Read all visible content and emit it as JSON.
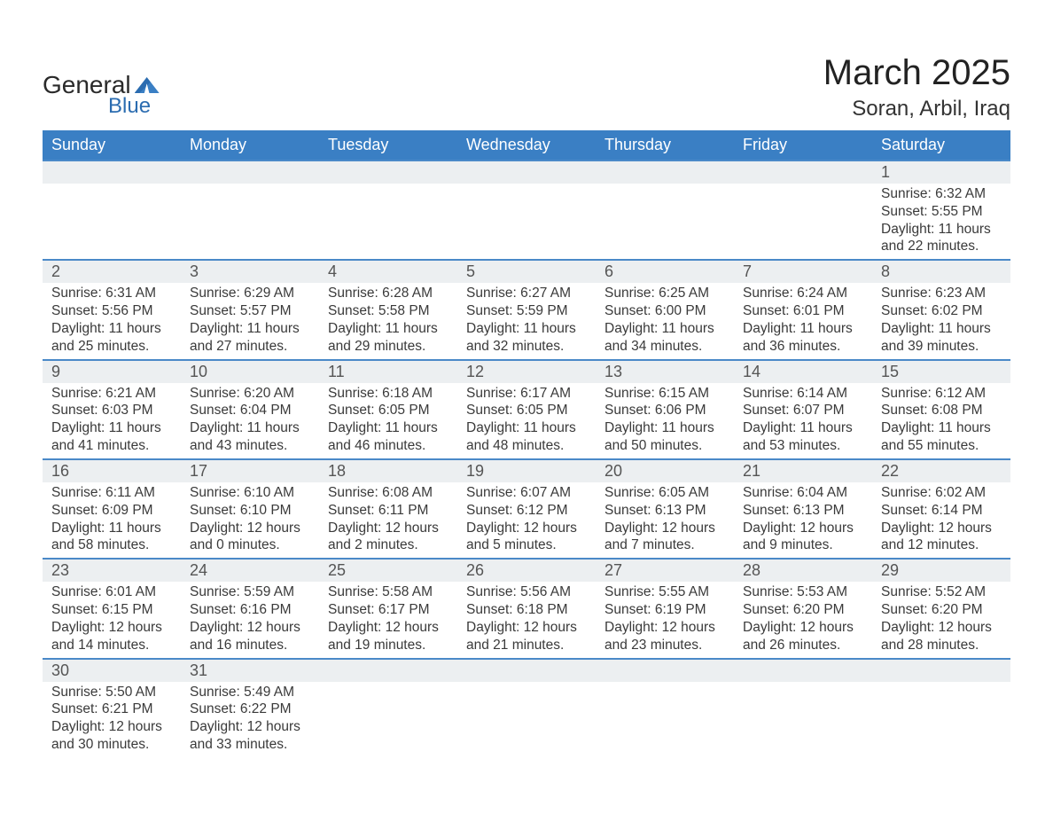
{
  "brand": {
    "name1": "General",
    "name2": "Blue",
    "accent": "#2b6cb0"
  },
  "title": "March 2025",
  "location": "Soran, Arbil, Iraq",
  "weekdays": [
    "Sunday",
    "Monday",
    "Tuesday",
    "Wednesday",
    "Thursday",
    "Friday",
    "Saturday"
  ],
  "colors": {
    "header_bg": "#3a7fc4",
    "header_fg": "#ffffff",
    "daynum_bg": "#eceff1",
    "row_border": "#4a89c8",
    "text": "#3a3a3a"
  },
  "weeks": [
    [
      null,
      null,
      null,
      null,
      null,
      null,
      {
        "d": "1",
        "sr": "6:32 AM",
        "ss": "5:55 PM",
        "dl": "11 hours and 22 minutes."
      }
    ],
    [
      {
        "d": "2",
        "sr": "6:31 AM",
        "ss": "5:56 PM",
        "dl": "11 hours and 25 minutes."
      },
      {
        "d": "3",
        "sr": "6:29 AM",
        "ss": "5:57 PM",
        "dl": "11 hours and 27 minutes."
      },
      {
        "d": "4",
        "sr": "6:28 AM",
        "ss": "5:58 PM",
        "dl": "11 hours and 29 minutes."
      },
      {
        "d": "5",
        "sr": "6:27 AM",
        "ss": "5:59 PM",
        "dl": "11 hours and 32 minutes."
      },
      {
        "d": "6",
        "sr": "6:25 AM",
        "ss": "6:00 PM",
        "dl": "11 hours and 34 minutes."
      },
      {
        "d": "7",
        "sr": "6:24 AM",
        "ss": "6:01 PM",
        "dl": "11 hours and 36 minutes."
      },
      {
        "d": "8",
        "sr": "6:23 AM",
        "ss": "6:02 PM",
        "dl": "11 hours and 39 minutes."
      }
    ],
    [
      {
        "d": "9",
        "sr": "6:21 AM",
        "ss": "6:03 PM",
        "dl": "11 hours and 41 minutes."
      },
      {
        "d": "10",
        "sr": "6:20 AM",
        "ss": "6:04 PM",
        "dl": "11 hours and 43 minutes."
      },
      {
        "d": "11",
        "sr": "6:18 AM",
        "ss": "6:05 PM",
        "dl": "11 hours and 46 minutes."
      },
      {
        "d": "12",
        "sr": "6:17 AM",
        "ss": "6:05 PM",
        "dl": "11 hours and 48 minutes."
      },
      {
        "d": "13",
        "sr": "6:15 AM",
        "ss": "6:06 PM",
        "dl": "11 hours and 50 minutes."
      },
      {
        "d": "14",
        "sr": "6:14 AM",
        "ss": "6:07 PM",
        "dl": "11 hours and 53 minutes."
      },
      {
        "d": "15",
        "sr": "6:12 AM",
        "ss": "6:08 PM",
        "dl": "11 hours and 55 minutes."
      }
    ],
    [
      {
        "d": "16",
        "sr": "6:11 AM",
        "ss": "6:09 PM",
        "dl": "11 hours and 58 minutes."
      },
      {
        "d": "17",
        "sr": "6:10 AM",
        "ss": "6:10 PM",
        "dl": "12 hours and 0 minutes."
      },
      {
        "d": "18",
        "sr": "6:08 AM",
        "ss": "6:11 PM",
        "dl": "12 hours and 2 minutes."
      },
      {
        "d": "19",
        "sr": "6:07 AM",
        "ss": "6:12 PM",
        "dl": "12 hours and 5 minutes."
      },
      {
        "d": "20",
        "sr": "6:05 AM",
        "ss": "6:13 PM",
        "dl": "12 hours and 7 minutes."
      },
      {
        "d": "21",
        "sr": "6:04 AM",
        "ss": "6:13 PM",
        "dl": "12 hours and 9 minutes."
      },
      {
        "d": "22",
        "sr": "6:02 AM",
        "ss": "6:14 PM",
        "dl": "12 hours and 12 minutes."
      }
    ],
    [
      {
        "d": "23",
        "sr": "6:01 AM",
        "ss": "6:15 PM",
        "dl": "12 hours and 14 minutes."
      },
      {
        "d": "24",
        "sr": "5:59 AM",
        "ss": "6:16 PM",
        "dl": "12 hours and 16 minutes."
      },
      {
        "d": "25",
        "sr": "5:58 AM",
        "ss": "6:17 PM",
        "dl": "12 hours and 19 minutes."
      },
      {
        "d": "26",
        "sr": "5:56 AM",
        "ss": "6:18 PM",
        "dl": "12 hours and 21 minutes."
      },
      {
        "d": "27",
        "sr": "5:55 AM",
        "ss": "6:19 PM",
        "dl": "12 hours and 23 minutes."
      },
      {
        "d": "28",
        "sr": "5:53 AM",
        "ss": "6:20 PM",
        "dl": "12 hours and 26 minutes."
      },
      {
        "d": "29",
        "sr": "5:52 AM",
        "ss": "6:20 PM",
        "dl": "12 hours and 28 minutes."
      }
    ],
    [
      {
        "d": "30",
        "sr": "5:50 AM",
        "ss": "6:21 PM",
        "dl": "12 hours and 30 minutes."
      },
      {
        "d": "31",
        "sr": "5:49 AM",
        "ss": "6:22 PM",
        "dl": "12 hours and 33 minutes."
      },
      null,
      null,
      null,
      null,
      null
    ]
  ],
  "labels": {
    "sunrise": "Sunrise: ",
    "sunset": "Sunset: ",
    "daylight": "Daylight: "
  }
}
